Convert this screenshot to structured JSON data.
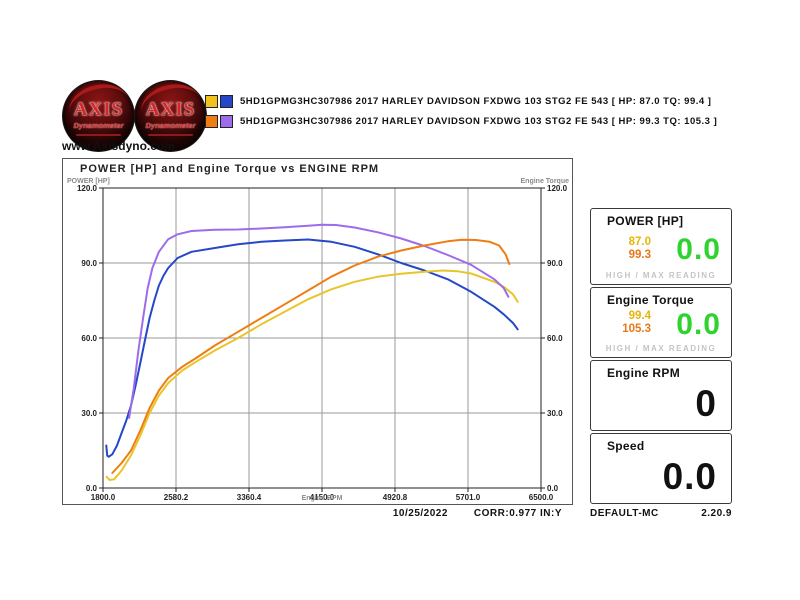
{
  "header": {
    "website": "www.Axisdyno.com",
    "logo": {
      "brand": "AXIS",
      "sub": "Dynamometer"
    }
  },
  "legend": {
    "runs": [
      {
        "colors": [
          "#F2C21C",
          "#2547C8"
        ],
        "label": "5HD1GPMG3HC307986 2017 HARLEY DAVIDSON FXDWG  103 STG2 FE 543 [ HP: 87.0 TQ: 99.4 ]"
      },
      {
        "colors": [
          "#EE7D12",
          "#9C6CEA"
        ],
        "label": "5HD1GPMG3HC307986 2017 HARLEY DAVIDSON FXDWG  103 STG2 FE 543 [ HP: 99.3 TQ: 105.3 ]"
      }
    ]
  },
  "chart_data": {
    "type": "line",
    "title": "POWER [HP] and Engine Torque vs ENGINE RPM",
    "xlabel": "Engine RPM",
    "ylabel_left": "POWER [HP]",
    "ylabel_right": "Engine Torque",
    "xlim": [
      1800,
      6500
    ],
    "ylim": [
      0,
      120
    ],
    "grid": true,
    "x_ticks": [
      1800.0,
      2580.2,
      3360.4,
      4150.0,
      4920.8,
      5701.0,
      6500.0
    ],
    "x_tick_labels": [
      "1800.0",
      "2580.2",
      "3360.4",
      "4150.0",
      "4920.8",
      "5701.0",
      "6500.0"
    ],
    "y_ticks": [
      0,
      30,
      60,
      90,
      120
    ],
    "y_tick_labels": [
      "0.0",
      "30.0",
      "60.0",
      "90.0",
      "120.0"
    ],
    "grid_color": "#9a9a9a",
    "series": [
      {
        "name": "torque-run1",
        "color": "#2547C8",
        "max": 99.4,
        "points": [
          [
            1835,
            17
          ],
          [
            1845,
            13
          ],
          [
            1860,
            12.5
          ],
          [
            1900,
            13.5
          ],
          [
            1950,
            17
          ],
          [
            2000,
            22
          ],
          [
            2050,
            27
          ],
          [
            2100,
            33
          ],
          [
            2150,
            41
          ],
          [
            2200,
            50
          ],
          [
            2250,
            59
          ],
          [
            2300,
            68
          ],
          [
            2350,
            75
          ],
          [
            2400,
            81
          ],
          [
            2450,
            85
          ],
          [
            2500,
            88
          ],
          [
            2600,
            92
          ],
          [
            2750,
            94.5
          ],
          [
            3000,
            96
          ],
          [
            3250,
            97.5
          ],
          [
            3500,
            98.5
          ],
          [
            3750,
            99
          ],
          [
            4000,
            99.4
          ],
          [
            4250,
            98.5
          ],
          [
            4500,
            96.5
          ],
          [
            4750,
            93.5
          ],
          [
            5000,
            90
          ],
          [
            5250,
            87
          ],
          [
            5500,
            83.5
          ],
          [
            5750,
            78.5
          ],
          [
            6000,
            72.5
          ],
          [
            6100,
            69.5
          ],
          [
            6200,
            66
          ],
          [
            6250,
            63.5
          ]
        ]
      },
      {
        "name": "power-run1",
        "color": "#E8C52A",
        "max": 87.0,
        "points": [
          [
            1840,
            4.5
          ],
          [
            1870,
            3.2
          ],
          [
            1920,
            3.5
          ],
          [
            2000,
            7
          ],
          [
            2100,
            13
          ],
          [
            2200,
            21
          ],
          [
            2300,
            30
          ],
          [
            2400,
            37
          ],
          [
            2500,
            42
          ],
          [
            2650,
            47
          ],
          [
            2800,
            50.5
          ],
          [
            3000,
            55
          ],
          [
            3250,
            60
          ],
          [
            3500,
            65.5
          ],
          [
            3750,
            70.5
          ],
          [
            4000,
            75.5
          ],
          [
            4250,
            79.5
          ],
          [
            4500,
            82.5
          ],
          [
            4750,
            84.5
          ],
          [
            5000,
            85.7
          ],
          [
            5250,
            86.5
          ],
          [
            5450,
            87
          ],
          [
            5600,
            86.7
          ],
          [
            5750,
            85.8
          ],
          [
            6000,
            82.5
          ],
          [
            6100,
            80.5
          ],
          [
            6200,
            77.5
          ],
          [
            6250,
            74.5
          ]
        ]
      },
      {
        "name": "torque-run2",
        "color": "#9C6CEA",
        "max": 105.3,
        "points": [
          [
            2080,
            28
          ],
          [
            2130,
            40
          ],
          [
            2180,
            55
          ],
          [
            2230,
            68
          ],
          [
            2280,
            80
          ],
          [
            2330,
            88
          ],
          [
            2400,
            94.5
          ],
          [
            2500,
            99.5
          ],
          [
            2600,
            101.5
          ],
          [
            2750,
            102.8
          ],
          [
            3000,
            103.3
          ],
          [
            3250,
            103.4
          ],
          [
            3500,
            103.8
          ],
          [
            3750,
            104.3
          ],
          [
            4000,
            104.9
          ],
          [
            4150,
            105.3
          ],
          [
            4300,
            105.2
          ],
          [
            4500,
            104.2
          ],
          [
            4750,
            102.3
          ],
          [
            5000,
            99.8
          ],
          [
            5250,
            96.8
          ],
          [
            5500,
            93.2
          ],
          [
            5750,
            89.3
          ],
          [
            6000,
            83.5
          ],
          [
            6100,
            80
          ],
          [
            6150,
            76.5
          ]
        ]
      },
      {
        "name": "power-run2",
        "color": "#EE7D12",
        "max": 99.3,
        "points": [
          [
            1900,
            6
          ],
          [
            2000,
            10
          ],
          [
            2100,
            15
          ],
          [
            2200,
            23
          ],
          [
            2300,
            32
          ],
          [
            2400,
            39
          ],
          [
            2500,
            44
          ],
          [
            2650,
            48.5
          ],
          [
            2800,
            52
          ],
          [
            3000,
            57
          ],
          [
            3250,
            62.5
          ],
          [
            3500,
            68
          ],
          [
            3750,
            73.5
          ],
          [
            4000,
            79
          ],
          [
            4250,
            84.5
          ],
          [
            4500,
            89
          ],
          [
            4750,
            92.5
          ],
          [
            5000,
            95
          ],
          [
            5250,
            97
          ],
          [
            5500,
            98.7
          ],
          [
            5650,
            99.3
          ],
          [
            5800,
            99.2
          ],
          [
            5950,
            98.5
          ],
          [
            6050,
            97
          ],
          [
            6120,
            93.5
          ],
          [
            6160,
            89.6
          ]
        ]
      }
    ]
  },
  "panels": [
    {
      "title": "POWER [HP]",
      "run_values": [
        {
          "value": "87.0",
          "color": "#E6B50A"
        },
        {
          "value": "99.3",
          "color": "#E87817"
        }
      ],
      "live_value": "0.0",
      "live_color": "#2FD32F",
      "footer": "HIGH / MAX READING"
    },
    {
      "title": "Engine Torque",
      "run_values": [
        {
          "value": "99.4",
          "color": "#E6B50A"
        },
        {
          "value": "105.3",
          "color": "#E87817"
        }
      ],
      "live_value": "0.0",
      "live_color": "#2FD32F",
      "footer": "HIGH / MAX READING"
    },
    {
      "title": "Engine RPM",
      "live_value": "0",
      "live_color": "#111111"
    },
    {
      "title": "Speed",
      "live_value": "0.0",
      "live_color": "#111111"
    }
  ],
  "status_bar": {
    "date": "10/25/2022",
    "correction": "CORR:0.977 IN:Y",
    "profile": "DEFAULT-MC",
    "version": "2.20.9"
  }
}
